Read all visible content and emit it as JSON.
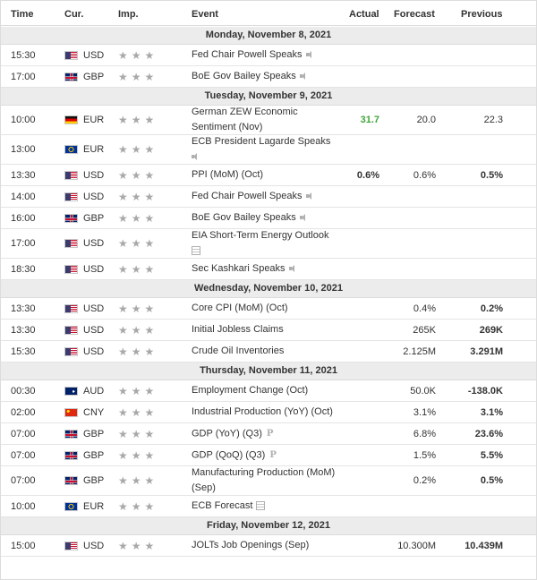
{
  "header": {
    "time": "Time",
    "currency": "Cur.",
    "importance": "Imp.",
    "event": "Event",
    "actual": "Actual",
    "forecast": "Forecast",
    "previous": "Previous"
  },
  "groups": [
    {
      "date": "Monday, November 8, 2021",
      "rows": [
        {
          "time": "15:30",
          "flag": "us",
          "cur": "USD",
          "event": [
            "Fed Chair Powell Speaks"
          ],
          "icon": "speaker",
          "actual": "",
          "forecast": "",
          "previous": ""
        },
        {
          "time": "17:00",
          "flag": "gb",
          "cur": "GBP",
          "event": [
            "BoE Gov Bailey Speaks"
          ],
          "icon": "speaker",
          "actual": "",
          "forecast": "",
          "previous": ""
        }
      ]
    },
    {
      "date": "Tuesday, November 9, 2021",
      "rows": [
        {
          "time": "10:00",
          "flag": "de",
          "cur": "EUR",
          "event": [
            "German ZEW Economic",
            "Sentiment (Nov)"
          ],
          "icon": "",
          "actual": "31.7",
          "actual_color": "green",
          "forecast": "20.0",
          "previous": "22.3",
          "previous_bold": false
        },
        {
          "time": "13:00",
          "flag": "eu",
          "cur": "EUR",
          "event": [
            "ECB President Lagarde Speaks",
            ""
          ],
          "icon": "speaker",
          "icon_line": 2,
          "actual": "",
          "forecast": "",
          "previous": ""
        },
        {
          "time": "13:30",
          "flag": "us",
          "cur": "USD",
          "event": [
            "PPI (MoM) (Oct)"
          ],
          "icon": "",
          "actual": "0.6%",
          "forecast": "0.6%",
          "previous": "0.5%"
        },
        {
          "time": "14:00",
          "flag": "us",
          "cur": "USD",
          "event": [
            "Fed Chair Powell Speaks"
          ],
          "icon": "speaker",
          "actual": "",
          "forecast": "",
          "previous": ""
        },
        {
          "time": "16:00",
          "flag": "gb",
          "cur": "GBP",
          "event": [
            "BoE Gov Bailey Speaks"
          ],
          "icon": "speaker",
          "actual": "",
          "forecast": "",
          "previous": ""
        },
        {
          "time": "17:00",
          "flag": "us",
          "cur": "USD",
          "event": [
            "EIA Short-Term Energy Outlook",
            ""
          ],
          "icon": "report",
          "icon_line": 2,
          "actual": "",
          "forecast": "",
          "previous": ""
        },
        {
          "time": "18:30",
          "flag": "us",
          "cur": "USD",
          "event": [
            "Sec Kashkari Speaks"
          ],
          "icon": "speaker",
          "actual": "",
          "forecast": "",
          "previous": ""
        }
      ]
    },
    {
      "date": "Wednesday, November 10, 2021",
      "rows": [
        {
          "time": "13:30",
          "flag": "us",
          "cur": "USD",
          "event": [
            "Core CPI (MoM) (Oct)"
          ],
          "icon": "",
          "actual": "",
          "forecast": "0.4%",
          "previous": "0.2%"
        },
        {
          "time": "13:30",
          "flag": "us",
          "cur": "USD",
          "event": [
            "Initial Jobless Claims"
          ],
          "icon": "",
          "actual": "",
          "forecast": "265K",
          "previous": "269K"
        },
        {
          "time": "15:30",
          "flag": "us",
          "cur": "USD",
          "event": [
            "Crude Oil Inventories"
          ],
          "icon": "",
          "actual": "",
          "forecast": "2.125M",
          "previous": "3.291M"
        }
      ]
    },
    {
      "date": "Thursday, November 11, 2021",
      "rows": [
        {
          "time": "00:30",
          "flag": "au",
          "cur": "AUD",
          "event": [
            "Employment Change (Oct)"
          ],
          "icon": "",
          "actual": "",
          "forecast": "50.0K",
          "previous": "-138.0K"
        },
        {
          "time": "02:00",
          "flag": "cn",
          "cur": "CNY",
          "event": [
            "Industrial Production (YoY) (Oct)"
          ],
          "icon": "",
          "actual": "",
          "forecast": "3.1%",
          "previous": "3.1%"
        },
        {
          "time": "07:00",
          "flag": "gb",
          "cur": "GBP",
          "event": [
            "GDP (YoY) (Q3)"
          ],
          "icon": "prelim",
          "actual": "",
          "forecast": "6.8%",
          "previous": "23.6%"
        },
        {
          "time": "07:00",
          "flag": "gb",
          "cur": "GBP",
          "event": [
            "GDP (QoQ) (Q3)"
          ],
          "icon": "prelim",
          "actual": "",
          "forecast": "1.5%",
          "previous": "5.5%"
        },
        {
          "time": "07:00",
          "flag": "gb",
          "cur": "GBP",
          "event": [
            "Manufacturing Production (MoM)",
            "(Sep)"
          ],
          "icon": "",
          "actual": "",
          "forecast": "0.2%",
          "previous": "0.5%"
        },
        {
          "time": "10:00",
          "flag": "eu",
          "cur": "EUR",
          "event": [
            "ECB Forecast"
          ],
          "icon": "report",
          "actual": "",
          "forecast": "",
          "previous": ""
        }
      ]
    },
    {
      "date": "Friday, November 12, 2021",
      "rows": [
        {
          "time": "15:00",
          "flag": "us",
          "cur": "USD",
          "event": [
            "JOLTs Job Openings (Sep)"
          ],
          "icon": "",
          "actual": "",
          "forecast": "10.300M",
          "previous": "10.439M"
        }
      ]
    }
  ],
  "prelim_glyph": "P",
  "colors": {
    "actual_green": "#41a53b",
    "date_bar": "#ececec",
    "star_inactive": "#a8a8a8"
  }
}
